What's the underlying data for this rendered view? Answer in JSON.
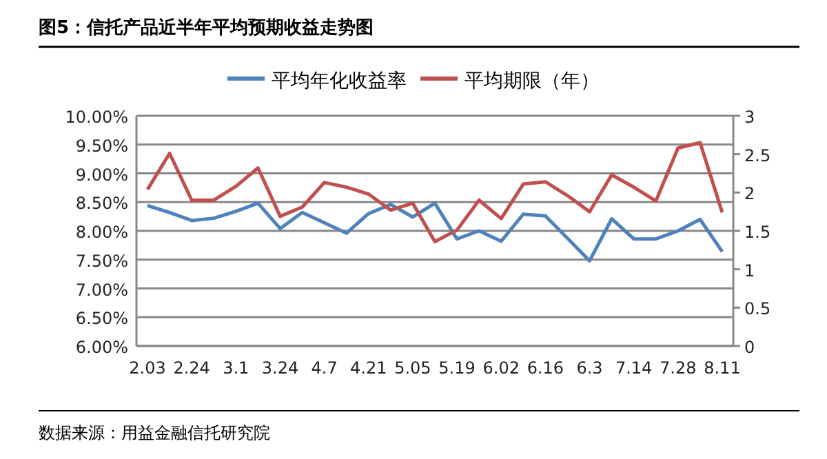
{
  "chart_data": {
    "type": "line",
    "title": "**图5：信托产品近半年平均预期收益走势图**",
    "categories": [
      "2.03",
      null,
      "2.24",
      null,
      "3.1",
      null,
      "3.24",
      null,
      "4.7",
      null,
      "4.21",
      null,
      "5.05",
      null,
      "5.19",
      null,
      "6.02",
      null,
      "6.16",
      null,
      "6.3",
      null,
      "7.14",
      null,
      "7.28",
      null,
      "8.11"
    ],
    "series": [
      {
        "name": "平均年化收益率",
        "color": "#4f81bd",
        "values": [
          8.44,
          8.32,
          8.18,
          8.22,
          8.34,
          8.48,
          8.04,
          8.32,
          8.14,
          7.96,
          8.3,
          8.46,
          8.24,
          8.48,
          7.86,
          8.0,
          7.82,
          8.29,
          8.26,
          7.87,
          7.48,
          8.21,
          7.86,
          7.86,
          8.0,
          8.2,
          7.64
        ]
      },
      {
        "name": "平均期限（年）",
        "color": "#c0504d",
        "axis": "y2",
        "values": [
          2.04,
          2.51,
          1.9,
          1.9,
          2.08,
          2.32,
          1.69,
          1.81,
          2.13,
          2.07,
          1.98,
          1.77,
          1.86,
          1.36,
          1.51,
          1.9,
          1.66,
          2.11,
          2.14,
          1.96,
          1.75,
          2.23,
          2.07,
          1.89,
          2.58,
          2.65,
          1.74
        ]
      }
    ],
    "ylim": [
      6,
      10
    ],
    "yticks": [
      {
        "value": 6,
        "label": "6.00%"
      },
      {
        "value": 6.5,
        "label": "6.50%"
      },
      {
        "value": 7,
        "label": "7.00%"
      },
      {
        "value": 7.5,
        "label": "7.50%"
      },
      {
        "value": 8,
        "label": "8.00%"
      },
      {
        "value": 8.5,
        "label": "8.50%"
      },
      {
        "value": 9,
        "label": "9.00%"
      },
      {
        "value": 9.5,
        "label": "9.50%"
      },
      {
        "value": 10,
        "label": "10.00%"
      }
    ],
    "y2lim": [
      0,
      3
    ],
    "y2ticks": [
      0,
      0.5,
      1,
      1.5,
      2,
      2.5,
      3
    ],
    "grid": "y",
    "legend": "top",
    "marker": "none",
    "line_style": "solid",
    "annotations": [
      "数据来源：用益金融信托研究院"
    ]
  }
}
